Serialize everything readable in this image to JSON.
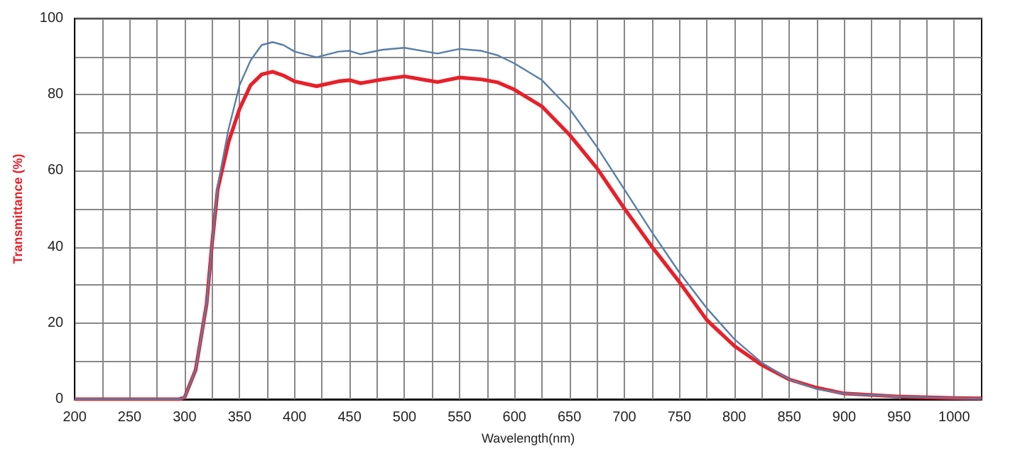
{
  "chart_data": {
    "type": "line",
    "xlabel": "Wavelength(nm)",
    "ylabel": "Transmittance (%)",
    "x": [
      200,
      295,
      300,
      310,
      320,
      325,
      330,
      340,
      350,
      360,
      370,
      380,
      390,
      400,
      420,
      440,
      450,
      460,
      480,
      500,
      520,
      530,
      550,
      570,
      585,
      600,
      625,
      650,
      675,
      700,
      725,
      750,
      775,
      800,
      825,
      850,
      875,
      900,
      950,
      1000,
      1025
    ],
    "series": [
      {
        "color": "#e8202a",
        "values": [
          0,
          0,
          0.5,
          7.7,
          25,
          41,
          55,
          67.6,
          76.3,
          82.5,
          85.3,
          86,
          85,
          83.5,
          82.2,
          83.5,
          83.8,
          83,
          84,
          84.8,
          83.8,
          83.3,
          84.5,
          84,
          83.2,
          81.3,
          76.9,
          69.5,
          60.7,
          50.1,
          40.1,
          30.8,
          20.8,
          14,
          9,
          5.2,
          3,
          1.5,
          0.7,
          0.3,
          0.2
        ]
      },
      {
        "color": "#5a7fa8",
        "values": [
          0,
          0,
          0.5,
          7.7,
          25,
          41,
          56,
          71,
          82.5,
          89,
          93,
          93.8,
          93,
          91.3,
          89.8,
          91.3,
          91.5,
          90.6,
          91.8,
          92.3,
          91.3,
          90.8,
          92,
          91.5,
          90.3,
          88.2,
          83.8,
          76.3,
          66.3,
          55.1,
          43.9,
          33.3,
          23.9,
          15.8,
          9.6,
          5.2,
          2.7,
          1.5,
          0.7,
          0.3,
          0.2
        ]
      }
    ],
    "xlim": [
      200,
      1025
    ],
    "xticks": [
      200,
      {
        "value": 225,
        "label": null
      },
      250,
      {
        "value": 275,
        "label": null
      },
      300,
      {
        "value": 325,
        "label": null
      },
      350,
      {
        "value": 375,
        "label": null
      },
      400,
      {
        "value": 425,
        "label": null
      },
      450,
      {
        "value": 475,
        "label": null
      },
      500,
      {
        "value": 525,
        "label": null
      },
      550,
      {
        "value": 575,
        "label": null
      },
      600,
      {
        "value": 625,
        "label": null
      },
      650,
      {
        "value": 675,
        "label": null
      },
      700,
      {
        "value": 725,
        "label": null
      },
      750,
      {
        "value": 775,
        "label": null
      },
      800,
      {
        "value": 825,
        "label": null
      },
      850,
      {
        "value": 875,
        "label": null
      },
      900,
      {
        "value": 925,
        "label": null
      },
      950,
      {
        "value": 975,
        "label": null
      },
      1000
    ],
    "ylim": [
      0,
      100
    ],
    "yticks": [
      0,
      {
        "value": 10,
        "label": null
      },
      20,
      {
        "value": 30,
        "label": null
      },
      40,
      {
        "value": 50,
        "label": null
      },
      60,
      {
        "value": 70,
        "label": null
      },
      80,
      {
        "value": 90,
        "label": null
      },
      100
    ],
    "grid": true,
    "marker": "none",
    "line_style": "solid"
  }
}
